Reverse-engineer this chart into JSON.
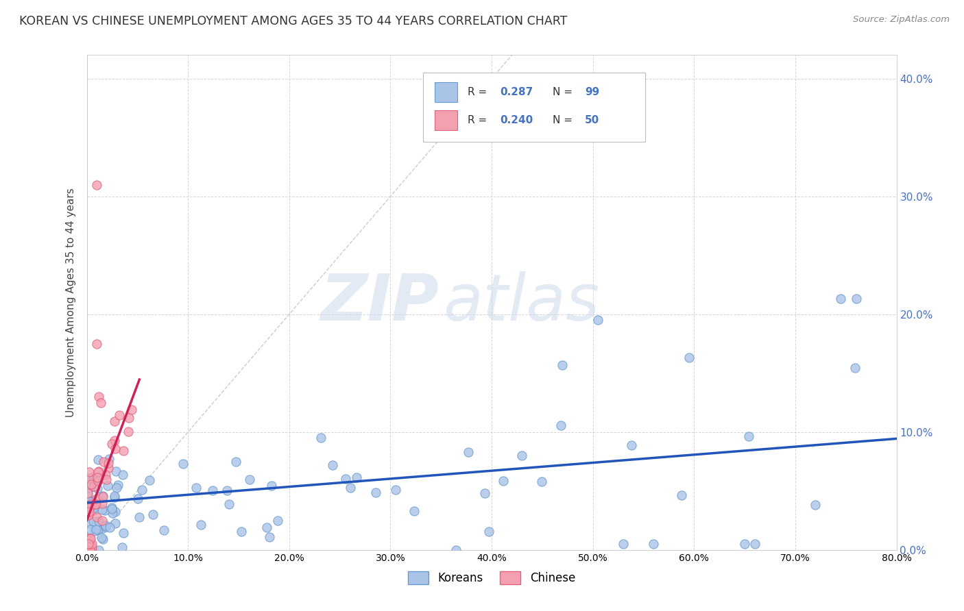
{
  "title": "KOREAN VS CHINESE UNEMPLOYMENT AMONG AGES 35 TO 44 YEARS CORRELATION CHART",
  "source": "Source: ZipAtlas.com",
  "ylabel": "Unemployment Among Ages 35 to 44 years",
  "xlim": [
    0.0,
    0.8
  ],
  "ylim": [
    0.0,
    0.42
  ],
  "xticks": [
    0.0,
    0.1,
    0.2,
    0.3,
    0.4,
    0.5,
    0.6,
    0.7,
    0.8
  ],
  "yticks": [
    0.0,
    0.1,
    0.2,
    0.3,
    0.4
  ],
  "background_color": "#ffffff",
  "grid_color": "#cccccc",
  "watermark_zip": "ZIP",
  "watermark_atlas": "atlas",
  "korean_color": "#aac4e8",
  "chinese_color": "#f4a0b0",
  "korean_edge": "#6699cc",
  "chinese_edge": "#e06080",
  "korean_line_color": "#2255bb",
  "chinese_line_color": "#cc2255",
  "diagonal_color": "#cccccc",
  "R_korean": "0.287",
  "N_korean": "99",
  "R_chinese": "0.240",
  "N_chinese": "50"
}
